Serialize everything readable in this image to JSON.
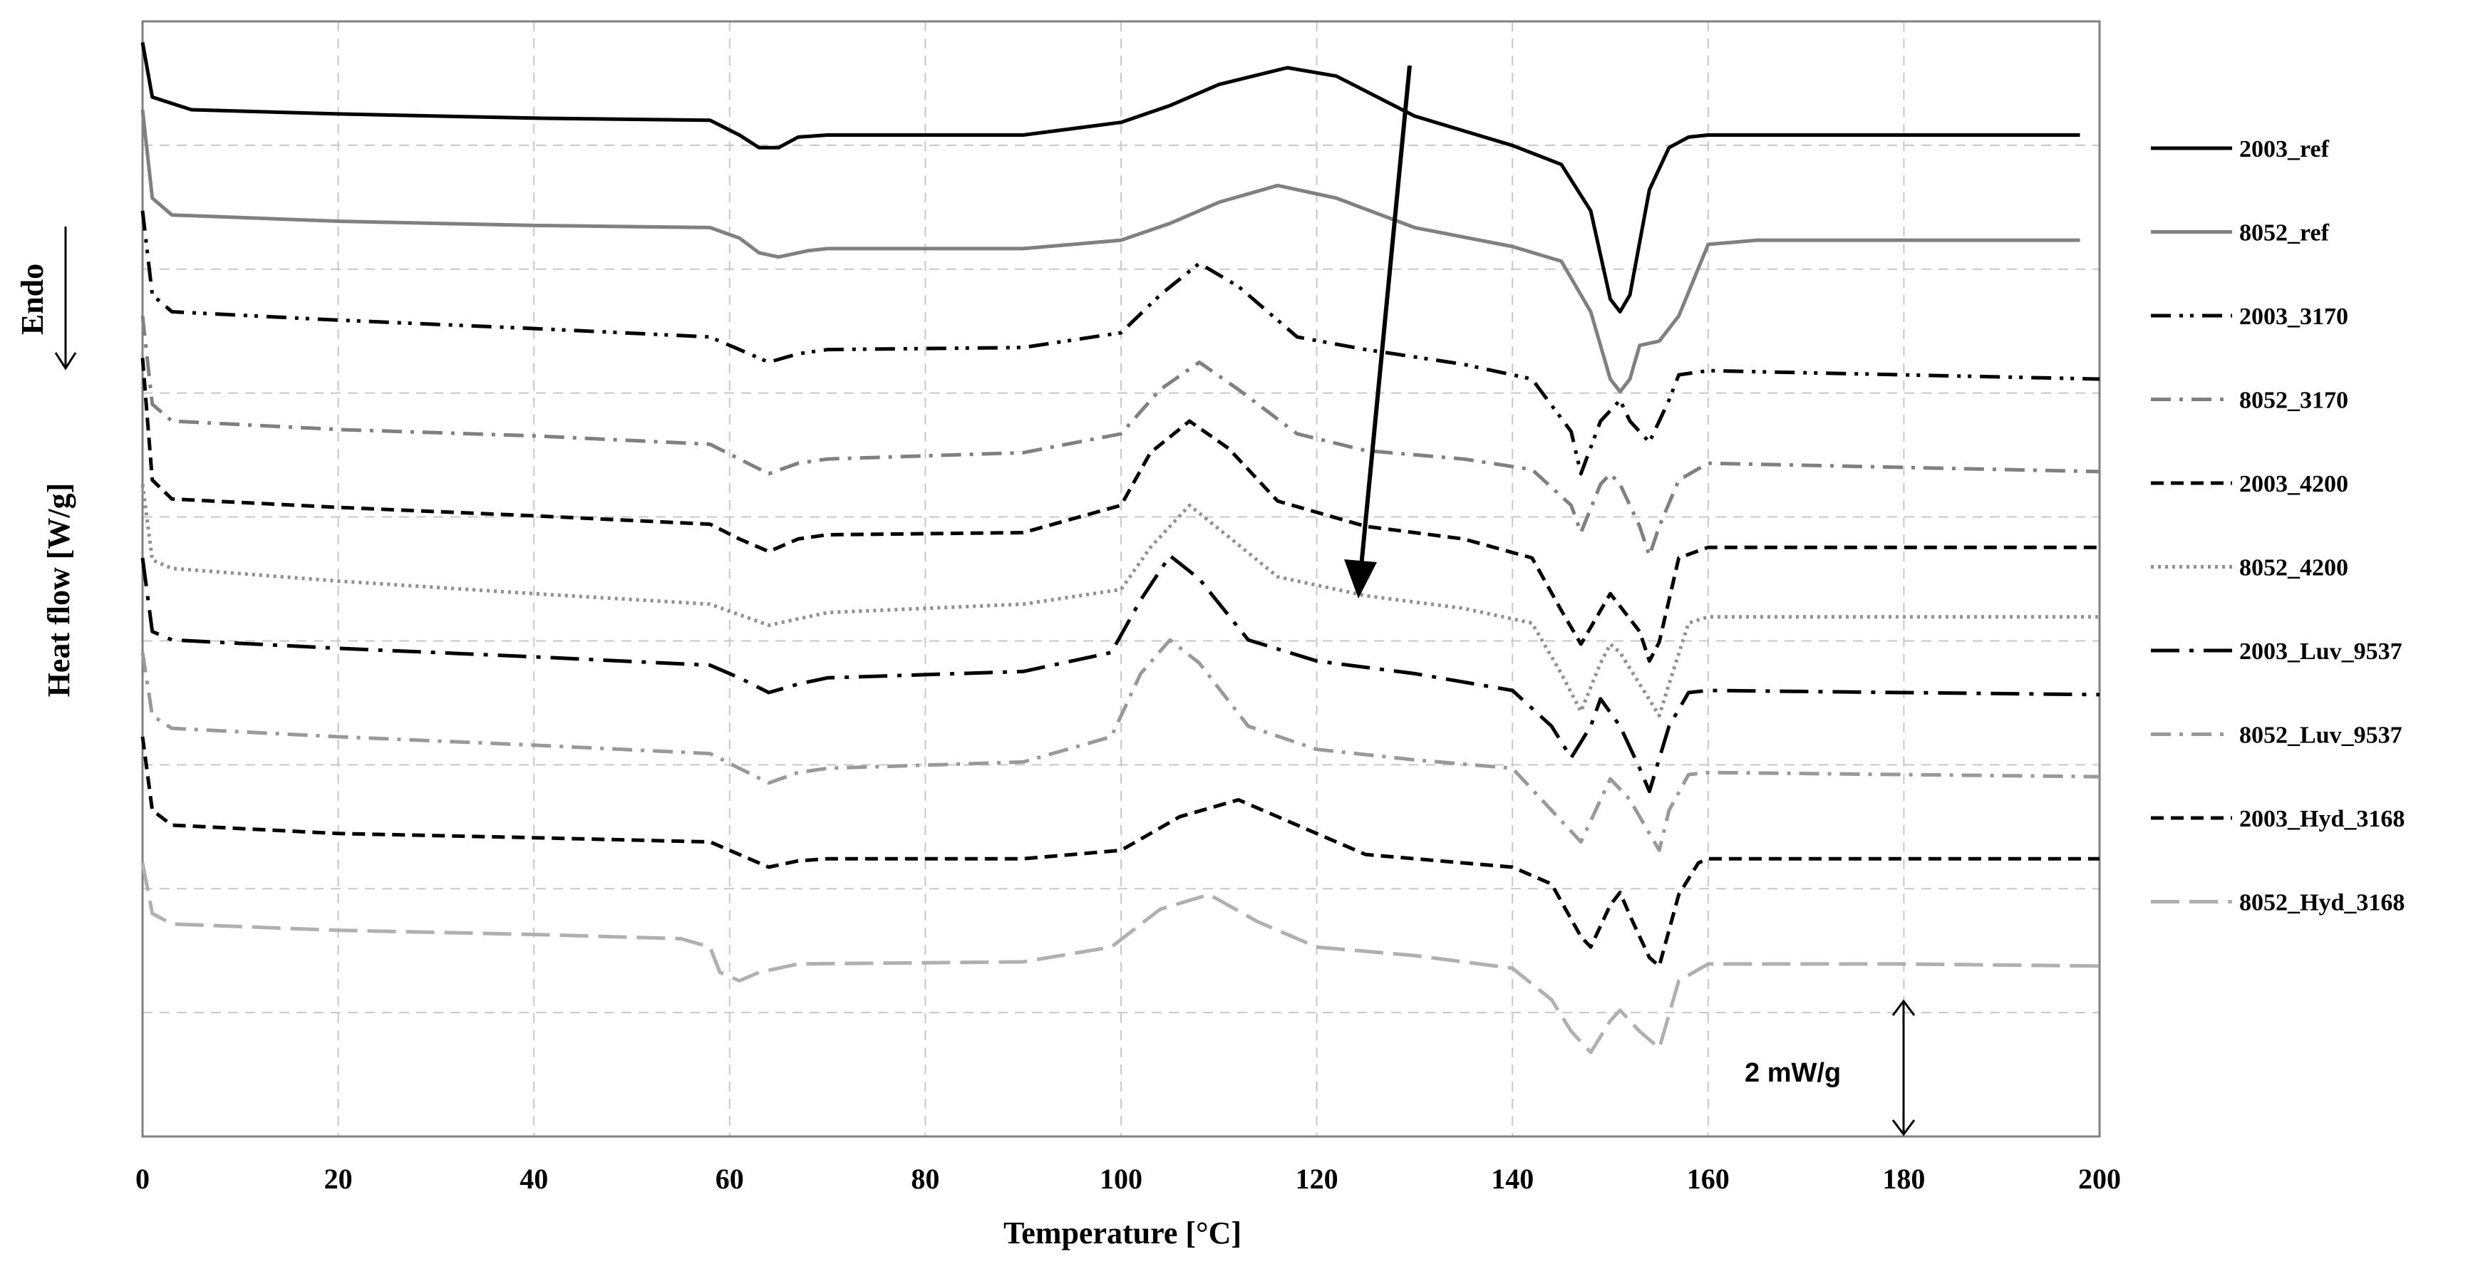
{
  "chart_data": {
    "type": "line",
    "xlabel": "Temperature [°C]",
    "ylabel": "Heat flow [W/g]",
    "endo_label": "Endo",
    "scale_bar_label": "2 mW/g",
    "xlim": [
      0,
      200
    ],
    "x_ticks": [
      "0",
      "20",
      "40",
      "60",
      "80",
      "100",
      "120",
      "140",
      "160",
      "180",
      "200"
    ],
    "grid": true,
    "legend_position": "right",
    "series": [
      {
        "name": "2003_ref",
        "color": "#000000",
        "dash": "solid",
        "points": [
          [
            0,
            1.0
          ],
          [
            1,
            3.6
          ],
          [
            5,
            4.2
          ],
          [
            20,
            4.4
          ],
          [
            40,
            4.6
          ],
          [
            58,
            4.7
          ],
          [
            61,
            5.4
          ],
          [
            63,
            6.0
          ],
          [
            65,
            6.0
          ],
          [
            67,
            5.5
          ],
          [
            70,
            5.4
          ],
          [
            90,
            5.4
          ],
          [
            100,
            4.8
          ],
          [
            105,
            4.0
          ],
          [
            110,
            3.0
          ],
          [
            117,
            2.2
          ],
          [
            122,
            2.6
          ],
          [
            130,
            4.5
          ],
          [
            140,
            5.9
          ],
          [
            145,
            6.8
          ],
          [
            148,
            9.0
          ],
          [
            150,
            13.2
          ],
          [
            151,
            13.8
          ],
          [
            152,
            13.0
          ],
          [
            154,
            8.0
          ],
          [
            156,
            6.0
          ],
          [
            158,
            5.5
          ],
          [
            160,
            5.4
          ],
          [
            180,
            5.4
          ],
          [
            198,
            5.4
          ]
        ]
      },
      {
        "name": "8052_ref",
        "color": "#808080",
        "dash": "solid",
        "points": [
          [
            0,
            4.2
          ],
          [
            1,
            8.4
          ],
          [
            3,
            9.2
          ],
          [
            20,
            9.5
          ],
          [
            40,
            9.7
          ],
          [
            58,
            9.8
          ],
          [
            61,
            10.3
          ],
          [
            63,
            11.0
          ],
          [
            65,
            11.2
          ],
          [
            68,
            10.9
          ],
          [
            70,
            10.8
          ],
          [
            90,
            10.8
          ],
          [
            100,
            10.4
          ],
          [
            105,
            9.6
          ],
          [
            110,
            8.6
          ],
          [
            116,
            7.8
          ],
          [
            122,
            8.4
          ],
          [
            130,
            9.8
          ],
          [
            140,
            10.7
          ],
          [
            145,
            11.4
          ],
          [
            148,
            13.8
          ],
          [
            150,
            17.0
          ],
          [
            151,
            17.6
          ],
          [
            152,
            17.0
          ],
          [
            153,
            15.4
          ],
          [
            155,
            15.2
          ],
          [
            157,
            14.0
          ],
          [
            160,
            10.6
          ],
          [
            165,
            10.4
          ],
          [
            180,
            10.4
          ],
          [
            198,
            10.4
          ]
        ]
      },
      {
        "name": "2003_3170",
        "color": "#000000",
        "dash": "dashdotdot",
        "points": [
          [
            0,
            9.0
          ],
          [
            1,
            13.0
          ],
          [
            3,
            13.8
          ],
          [
            20,
            14.2
          ],
          [
            40,
            14.6
          ],
          [
            58,
            15.0
          ],
          [
            61,
            15.6
          ],
          [
            64,
            16.2
          ],
          [
            67,
            15.8
          ],
          [
            70,
            15.6
          ],
          [
            90,
            15.5
          ],
          [
            100,
            14.8
          ],
          [
            104,
            13.0
          ],
          [
            108,
            11.5
          ],
          [
            112,
            12.6
          ],
          [
            118,
            15.0
          ],
          [
            125,
            15.6
          ],
          [
            135,
            16.3
          ],
          [
            142,
            17.0
          ],
          [
            146,
            19.5
          ],
          [
            147,
            21.5
          ],
          [
            149,
            19.0
          ],
          [
            151,
            18.0
          ],
          [
            152,
            19.0
          ],
          [
            154,
            20.0
          ],
          [
            156,
            18.0
          ],
          [
            157,
            16.8
          ],
          [
            160,
            16.6
          ],
          [
            180,
            16.8
          ],
          [
            200,
            17.0
          ]
        ]
      },
      {
        "name": "8052_3170",
        "color": "#808080",
        "dash": "dashdot",
        "points": [
          [
            0,
            14.0
          ],
          [
            1,
            18.2
          ],
          [
            3,
            19.0
          ],
          [
            20,
            19.4
          ],
          [
            40,
            19.7
          ],
          [
            58,
            20.1
          ],
          [
            61,
            20.8
          ],
          [
            64,
            21.5
          ],
          [
            67,
            21.0
          ],
          [
            70,
            20.8
          ],
          [
            90,
            20.5
          ],
          [
            100,
            19.6
          ],
          [
            104,
            17.5
          ],
          [
            108,
            16.2
          ],
          [
            112,
            17.5
          ],
          [
            118,
            19.6
          ],
          [
            125,
            20.4
          ],
          [
            135,
            20.8
          ],
          [
            142,
            21.3
          ],
          [
            146,
            23.0
          ],
          [
            147,
            24.3
          ],
          [
            149,
            22.0
          ],
          [
            150,
            21.5
          ],
          [
            151,
            22.0
          ],
          [
            153,
            24.0
          ],
          [
            154,
            25.4
          ],
          [
            155,
            24.0
          ],
          [
            157,
            21.8
          ],
          [
            160,
            21.0
          ],
          [
            180,
            21.2
          ],
          [
            200,
            21.4
          ]
        ]
      },
      {
        "name": "2003_4200",
        "color": "#000000",
        "dash": "dashed",
        "points": [
          [
            0,
            16.0
          ],
          [
            1,
            21.8
          ],
          [
            3,
            22.7
          ],
          [
            20,
            23.1
          ],
          [
            40,
            23.5
          ],
          [
            58,
            23.9
          ],
          [
            61,
            24.6
          ],
          [
            64,
            25.2
          ],
          [
            67,
            24.6
          ],
          [
            70,
            24.4
          ],
          [
            90,
            24.3
          ],
          [
            100,
            23.0
          ],
          [
            103,
            20.5
          ],
          [
            107,
            19.0
          ],
          [
            111,
            20.3
          ],
          [
            116,
            22.8
          ],
          [
            125,
            24.0
          ],
          [
            135,
            24.6
          ],
          [
            142,
            25.5
          ],
          [
            145,
            28.0
          ],
          [
            147,
            29.6
          ],
          [
            149,
            28.0
          ],
          [
            150,
            27.2
          ],
          [
            151,
            27.8
          ],
          [
            153,
            29.0
          ],
          [
            154,
            30.4
          ],
          [
            155,
            29.5
          ],
          [
            157,
            25.5
          ],
          [
            160,
            25.0
          ],
          [
            180,
            25.0
          ],
          [
            200,
            25.0
          ]
        ]
      },
      {
        "name": "8052_4200",
        "color": "#909090",
        "dash": "dotted",
        "points": [
          [
            0,
            22.0
          ],
          [
            1,
            25.6
          ],
          [
            3,
            26.0
          ],
          [
            20,
            26.6
          ],
          [
            40,
            27.2
          ],
          [
            58,
            27.7
          ],
          [
            61,
            28.2
          ],
          [
            64,
            28.7
          ],
          [
            67,
            28.4
          ],
          [
            70,
            28.1
          ],
          [
            90,
            27.7
          ],
          [
            100,
            27.0
          ],
          [
            103,
            25.0
          ],
          [
            107,
            23.0
          ],
          [
            111,
            24.5
          ],
          [
            116,
            26.4
          ],
          [
            125,
            27.3
          ],
          [
            135,
            27.9
          ],
          [
            142,
            28.6
          ],
          [
            145,
            31.0
          ],
          [
            147,
            32.8
          ],
          [
            149,
            30.5
          ],
          [
            150,
            29.6
          ],
          [
            151,
            30.0
          ],
          [
            153,
            31.5
          ],
          [
            155,
            33.0
          ],
          [
            156,
            31.5
          ],
          [
            158,
            28.6
          ],
          [
            160,
            28.3
          ],
          [
            180,
            28.3
          ],
          [
            200,
            28.3
          ]
        ]
      },
      {
        "name": "2003_Luv_9537",
        "color": "#000000",
        "dash": "longdashdot",
        "points": [
          [
            0,
            25.5
          ],
          [
            1,
            29.0
          ],
          [
            3,
            29.4
          ],
          [
            20,
            29.8
          ],
          [
            40,
            30.2
          ],
          [
            58,
            30.6
          ],
          [
            61,
            31.2
          ],
          [
            64,
            31.9
          ],
          [
            67,
            31.5
          ],
          [
            70,
            31.2
          ],
          [
            90,
            30.9
          ],
          [
            99,
            30.0
          ],
          [
            102,
            27.5
          ],
          [
            105,
            25.4
          ],
          [
            108,
            26.5
          ],
          [
            113,
            29.4
          ],
          [
            120,
            30.4
          ],
          [
            130,
            31.0
          ],
          [
            140,
            31.8
          ],
          [
            144,
            33.5
          ],
          [
            146,
            35.0
          ],
          [
            148,
            33.5
          ],
          [
            149,
            32.2
          ],
          [
            151,
            33.5
          ],
          [
            153,
            35.5
          ],
          [
            154,
            36.6
          ],
          [
            156,
            33.5
          ],
          [
            158,
            31.9
          ],
          [
            160,
            31.8
          ],
          [
            180,
            31.9
          ],
          [
            200,
            32.0
          ]
        ]
      },
      {
        "name": "8052_Luv_9537",
        "color": "#999999",
        "dash": "dashdot",
        "points": [
          [
            0,
            30.0
          ],
          [
            1,
            33.0
          ],
          [
            3,
            33.6
          ],
          [
            20,
            34.0
          ],
          [
            40,
            34.4
          ],
          [
            58,
            34.8
          ],
          [
            61,
            35.5
          ],
          [
            64,
            36.2
          ],
          [
            67,
            35.7
          ],
          [
            70,
            35.5
          ],
          [
            90,
            35.2
          ],
          [
            99,
            34.0
          ],
          [
            102,
            31.0
          ],
          [
            105,
            29.4
          ],
          [
            108,
            30.5
          ],
          [
            113,
            33.5
          ],
          [
            120,
            34.6
          ],
          [
            130,
            35.1
          ],
          [
            140,
            35.5
          ],
          [
            144,
            37.5
          ],
          [
            147,
            39.0
          ],
          [
            149,
            37.0
          ],
          [
            150,
            36.0
          ],
          [
            152,
            37.0
          ],
          [
            154,
            38.6
          ],
          [
            155,
            39.4
          ],
          [
            156,
            37.5
          ],
          [
            158,
            35.8
          ],
          [
            160,
            35.7
          ],
          [
            180,
            35.8
          ],
          [
            200,
            35.9
          ]
        ]
      },
      {
        "name": "2003_Hyd_3168",
        "color": "#000000",
        "dash": "dashed",
        "points": [
          [
            0,
            34.0
          ],
          [
            1,
            37.5
          ],
          [
            3,
            38.2
          ],
          [
            20,
            38.6
          ],
          [
            40,
            38.8
          ],
          [
            58,
            39.0
          ],
          [
            61,
            39.6
          ],
          [
            64,
            40.2
          ],
          [
            67,
            39.9
          ],
          [
            70,
            39.8
          ],
          [
            90,
            39.8
          ],
          [
            100,
            39.4
          ],
          [
            106,
            37.8
          ],
          [
            112,
            37.0
          ],
          [
            118,
            38.2
          ],
          [
            125,
            39.6
          ],
          [
            140,
            40.2
          ],
          [
            144,
            41.0
          ],
          [
            147,
            43.5
          ],
          [
            148,
            44.0
          ],
          [
            150,
            42.0
          ],
          [
            151,
            41.4
          ],
          [
            152,
            42.5
          ],
          [
            154,
            44.5
          ],
          [
            155,
            44.9
          ],
          [
            157,
            41.5
          ],
          [
            159,
            40.0
          ],
          [
            160,
            39.8
          ],
          [
            180,
            39.8
          ],
          [
            200,
            39.8
          ]
        ]
      },
      {
        "name": "8052_Hyd_3168",
        "color": "#b0b0b0",
        "dash": "longdash",
        "points": [
          [
            0,
            40.0
          ],
          [
            1,
            42.4
          ],
          [
            3,
            42.9
          ],
          [
            20,
            43.2
          ],
          [
            40,
            43.4
          ],
          [
            55,
            43.6
          ],
          [
            58,
            44.0
          ],
          [
            59,
            45.2
          ],
          [
            61,
            45.6
          ],
          [
            63,
            45.2
          ],
          [
            67,
            44.8
          ],
          [
            90,
            44.7
          ],
          [
            99,
            44.0
          ],
          [
            104,
            42.2
          ],
          [
            109,
            41.5
          ],
          [
            114,
            42.8
          ],
          [
            120,
            44.0
          ],
          [
            130,
            44.4
          ],
          [
            140,
            45.0
          ],
          [
            144,
            46.5
          ],
          [
            146,
            48.0
          ],
          [
            148,
            49.0
          ],
          [
            150,
            47.5
          ],
          [
            151,
            47.0
          ],
          [
            153,
            48.0
          ],
          [
            155,
            48.8
          ],
          [
            157,
            45.6
          ],
          [
            160,
            44.8
          ],
          [
            180,
            44.8
          ],
          [
            200,
            44.9
          ]
        ]
      }
    ]
  }
}
